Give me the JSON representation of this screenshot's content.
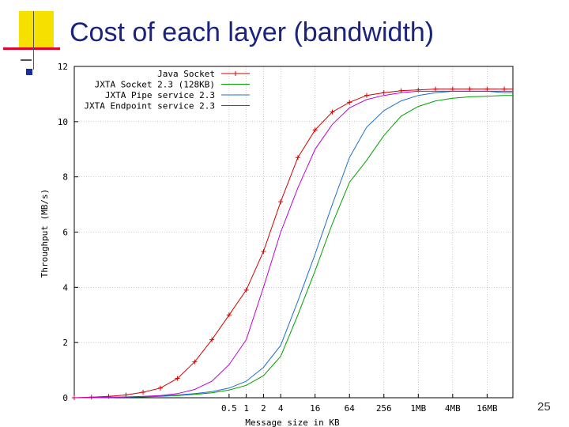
{
  "slide": {
    "title": "Cost of each layer (bandwidth)",
    "page_number": "25"
  },
  "colors": {
    "title": "#1a237e",
    "deco_yellow": "#f5e000",
    "deco_red": "#e8002a",
    "deco_blue": "#1a2ca0",
    "java_socket": "#d50000",
    "jxta_socket": "#00a000",
    "jxta_pipe": "#1e6ed0",
    "jxta_endpoint": "#c000d0",
    "grid": "#aaaaaa"
  },
  "chart_data": {
    "type": "line",
    "title": "",
    "xlabel": "Message size in KB",
    "ylabel": "Throughput (MB/s)",
    "x_scale": "log2",
    "xlim_log2": [
      -10,
      15.5
    ],
    "ylim": [
      0,
      12
    ],
    "grid": true,
    "legend_placement": "top",
    "x_ticks": [
      {
        "log2": -1,
        "label": "0.5"
      },
      {
        "log2": 0,
        "label": "1"
      },
      {
        "log2": 1,
        "label": "2"
      },
      {
        "log2": 2,
        "label": "4"
      },
      {
        "log2": 4,
        "label": "16"
      },
      {
        "log2": 6,
        "label": "64"
      },
      {
        "log2": 8,
        "label": "256"
      },
      {
        "log2": 10,
        "label": "1MB"
      },
      {
        "log2": 12,
        "label": "4MB"
      },
      {
        "log2": 14,
        "label": "16MB"
      }
    ],
    "y_ticks": [
      0,
      2,
      4,
      6,
      8,
      10,
      12
    ],
    "x_log2": [
      -10,
      -9,
      -8,
      -7,
      -6,
      -5,
      -4,
      -3,
      -2,
      -1,
      0,
      1,
      2,
      3,
      4,
      5,
      6,
      7,
      8,
      9,
      10,
      11,
      12,
      13,
      14,
      15,
      15.5
    ],
    "series": [
      {
        "name": "Java Socket",
        "color_key": "java_socket",
        "marker": "+",
        "values": [
          0,
          0.02,
          0.05,
          0.1,
          0.2,
          0.35,
          0.7,
          1.3,
          2.1,
          3.0,
          3.9,
          5.3,
          7.1,
          8.7,
          9.7,
          10.35,
          10.7,
          10.95,
          11.05,
          11.12,
          11.15,
          11.18,
          11.18,
          11.18,
          11.18,
          11.18,
          11.18
        ]
      },
      {
        "name": "JXTA Socket 2.3 (128KB)",
        "color_key": "jxta_socket",
        "marker": "",
        "values": [
          0,
          0,
          0.01,
          0.02,
          0.03,
          0.05,
          0.08,
          0.12,
          0.18,
          0.28,
          0.45,
          0.8,
          1.5,
          3.0,
          4.6,
          6.3,
          7.8,
          8.6,
          9.5,
          10.2,
          10.55,
          10.75,
          10.85,
          10.9,
          10.92,
          10.95,
          10.95
        ]
      },
      {
        "name": "JXTA Pipe service 2.3",
        "color_key": "jxta_pipe",
        "marker": "",
        "values": [
          0,
          0,
          0.01,
          0.02,
          0.04,
          0.06,
          0.1,
          0.15,
          0.22,
          0.35,
          0.6,
          1.1,
          1.9,
          3.5,
          5.2,
          7.0,
          8.7,
          9.8,
          10.4,
          10.75,
          10.95,
          11.05,
          11.1,
          11.1,
          11.1,
          11.05,
          11.05
        ]
      },
      {
        "name": "JXTA Endpoint service 2.3",
        "color_key": "jxta_endpoint",
        "marker": "",
        "values": [
          0,
          0.01,
          0.02,
          0.03,
          0.05,
          0.08,
          0.15,
          0.3,
          0.6,
          1.2,
          2.1,
          4.0,
          6.0,
          7.6,
          9.0,
          9.9,
          10.5,
          10.8,
          10.95,
          11.05,
          11.1,
          11.1,
          11.1,
          11.1,
          11.1,
          11.1,
          11.1
        ]
      }
    ]
  }
}
